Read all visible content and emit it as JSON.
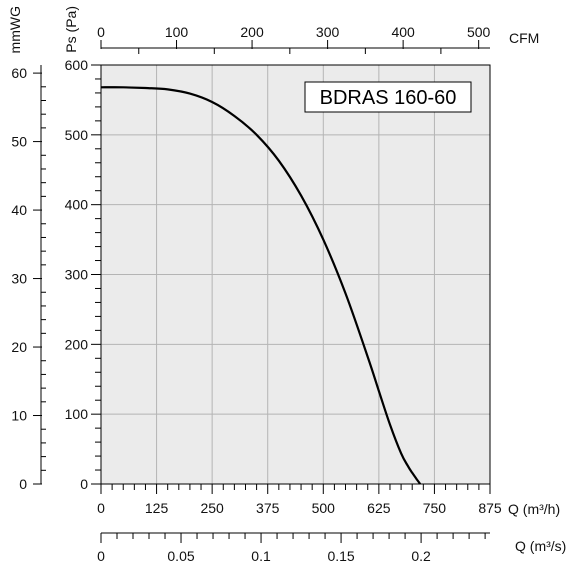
{
  "chart_data": {
    "type": "line",
    "title": "BDRAS 160-60",
    "x": [
      0,
      50,
      100,
      150,
      200,
      250,
      300,
      350,
      400,
      450,
      500,
      550,
      600,
      625,
      650,
      675,
      690,
      700,
      710,
      718
    ],
    "series": [
      {
        "values": [
          568,
          568,
          567,
          565,
          559,
          547,
          527,
          500,
          463,
          413,
          350,
          273,
          182,
          133,
          85,
          44,
          26,
          16,
          7,
          0
        ]
      }
    ],
    "xlabel": "Q (m³/h)",
    "ylabel": "Ps (Pa)",
    "xlim": [
      0,
      875
    ],
    "ylim": [
      0,
      600
    ],
    "x_ticks": [
      0,
      125,
      250,
      375,
      500,
      625,
      750,
      875
    ],
    "y_ticks": [
      0,
      100,
      200,
      300,
      400,
      500,
      600
    ],
    "grid": true,
    "top_axis": {
      "label": "CFM",
      "ticks": [
        0,
        100,
        200,
        300,
        400,
        500
      ],
      "factor": 1.699
    },
    "left_axis": {
      "label": "mmWG",
      "ticks": [
        0,
        10,
        20,
        30,
        40,
        50,
        60
      ],
      "factor": 9.80665
    },
    "bottom_axis2": {
      "label": "Q (m³/s)",
      "ticks": [
        "0",
        "0.05",
        "0.1",
        "0.15",
        "0.2"
      ],
      "tick_values": [
        0,
        0.05,
        0.1,
        0.15,
        0.2
      ],
      "factor": 3600
    },
    "colors": {
      "plot_background": "#ebebeb",
      "grid": "#b4b4b4",
      "curve": "#000000"
    }
  }
}
